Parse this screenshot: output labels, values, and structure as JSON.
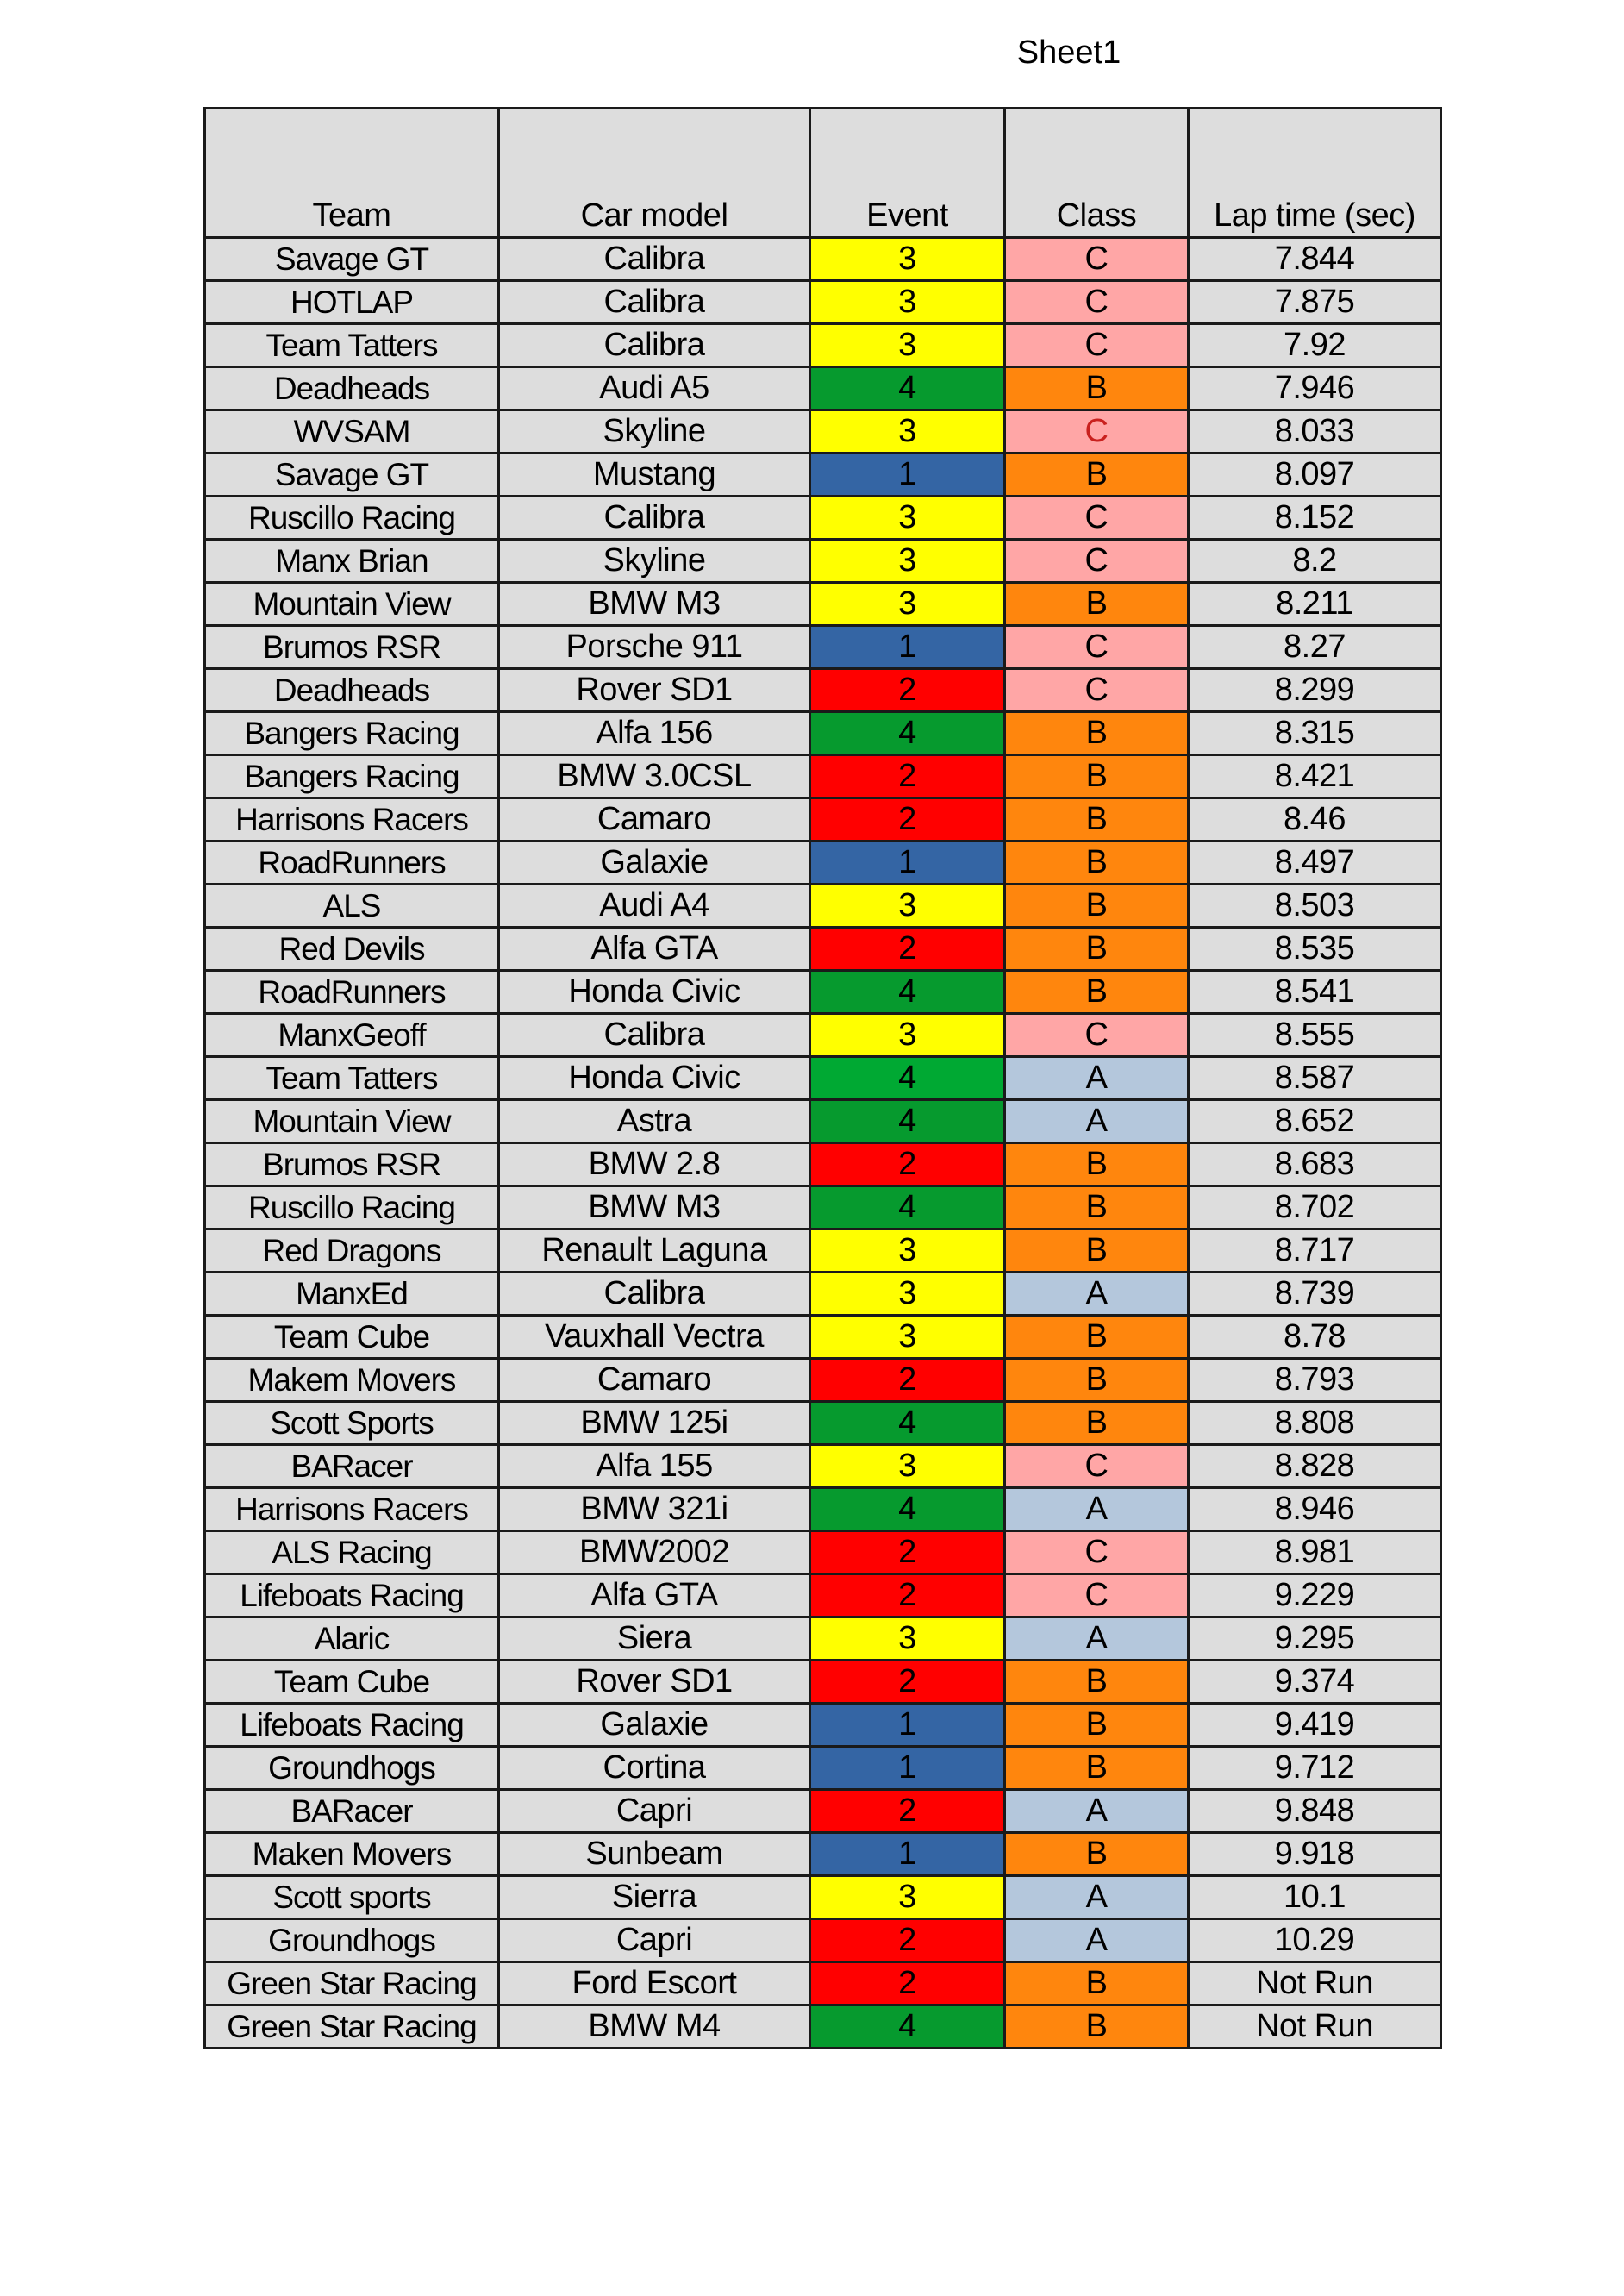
{
  "sheet_title": "Sheet1",
  "headers": [
    "Team",
    "Car model",
    "Event",
    "Class",
    "Lap time (sec)"
  ],
  "colors": {
    "cell_bg": "#dddddd",
    "event": {
      "1": "#3465a4",
      "2": "#ff0000",
      "3": "#ffff00",
      "4": "#069a2e"
    },
    "event_bright_green": "#00a933",
    "class": {
      "A": "#b4c7dc",
      "B": "#ff860d",
      "C": "#ffa6a6"
    },
    "class_red_text": "#c9211e"
  },
  "rows": [
    {
      "team": "Savage GT",
      "car": "Calibra",
      "event": "3",
      "class": "C",
      "lap": "7.844"
    },
    {
      "team": "HOTLAP",
      "car": "Calibra",
      "event": "3",
      "class": "C",
      "lap": "7.875"
    },
    {
      "team": "Team Tatters",
      "car": "Calibra",
      "event": "3",
      "class": "C",
      "lap": "7.92"
    },
    {
      "team": "Deadheads",
      "car": "Audi A5",
      "event": "4",
      "class": "B",
      "lap": "7.946"
    },
    {
      "team": "WVSAM",
      "car": "Skyline",
      "event": "3",
      "class": "C",
      "lap": "8.033",
      "class_text_red": true
    },
    {
      "team": "Savage GT",
      "car": "Mustang",
      "event": "1",
      "class": "B",
      "lap": "8.097"
    },
    {
      "team": "Ruscillo Racing",
      "car": "Calibra",
      "event": "3",
      "class": "C",
      "lap": "8.152"
    },
    {
      "team": "Manx Brian",
      "car": "Skyline",
      "event": "3",
      "class": "C",
      "lap": "8.2"
    },
    {
      "team": "Mountain View",
      "car": "BMW M3",
      "event": "3",
      "class": "B",
      "lap": "8.211"
    },
    {
      "team": "Brumos RSR",
      "car": "Porsche 911",
      "event": "1",
      "class": "C",
      "lap": "8.27"
    },
    {
      "team": "Deadheads",
      "car": "Rover SD1",
      "event": "2",
      "class": "C",
      "lap": "8.299"
    },
    {
      "team": "Bangers Racing",
      "car": "Alfa 156",
      "event": "4",
      "class": "B",
      "lap": "8.315"
    },
    {
      "team": "Bangers Racing",
      "car": "BMW 3.0CSL",
      "event": "2",
      "class": "B",
      "lap": "8.421"
    },
    {
      "team": "Harrisons Racers",
      "car": "Camaro",
      "event": "2",
      "class": "B",
      "lap": "8.46"
    },
    {
      "team": "RoadRunners",
      "car": "Galaxie",
      "event": "1",
      "class": "B",
      "lap": "8.497"
    },
    {
      "team": "ALS",
      "car": "Audi A4",
      "event": "3",
      "class": "B",
      "lap": "8.503"
    },
    {
      "team": "Red Devils",
      "car": "Alfa GTA",
      "event": "2",
      "class": "B",
      "lap": "8.535"
    },
    {
      "team": "RoadRunners",
      "car": "Honda Civic",
      "event": "4",
      "class": "B",
      "lap": "8.541"
    },
    {
      "team": "ManxGeoff",
      "car": "Calibra",
      "event": "3",
      "class": "C",
      "lap": "8.555"
    },
    {
      "team": "Team Tatters",
      "car": "Honda Civic",
      "event": "4",
      "class": "A",
      "lap": "8.587",
      "bright_green": true
    },
    {
      "team": "Mountain View",
      "car": "Astra",
      "event": "4",
      "class": "A",
      "lap": "8.652"
    },
    {
      "team": "Brumos RSR",
      "car": "BMW 2.8",
      "event": "2",
      "class": "B",
      "lap": "8.683"
    },
    {
      "team": "Ruscillo Racing",
      "car": "BMW M3",
      "event": "4",
      "class": "B",
      "lap": "8.702"
    },
    {
      "team": "Red Dragons",
      "car": "Renault Laguna",
      "event": "3",
      "class": "B",
      "lap": "8.717"
    },
    {
      "team": "ManxEd",
      "car": "Calibra",
      "event": "3",
      "class": "A",
      "lap": "8.739"
    },
    {
      "team": "Team Cube",
      "car": "Vauxhall Vectra",
      "event": "3",
      "class": "B",
      "lap": "8.78"
    },
    {
      "team": "Makem Movers",
      "car": "Camaro",
      "event": "2",
      "class": "B",
      "lap": "8.793"
    },
    {
      "team": "Scott Sports",
      "car": "BMW 125i",
      "event": "4",
      "class": "B",
      "lap": "8.808"
    },
    {
      "team": "BARacer",
      "car": "Alfa 155",
      "event": "3",
      "class": "C",
      "lap": "8.828"
    },
    {
      "team": "Harrisons Racers",
      "car": "BMW 321i",
      "event": "4",
      "class": "A",
      "lap": "8.946"
    },
    {
      "team": "ALS Racing",
      "car": "BMW2002",
      "event": "2",
      "class": "C",
      "lap": "8.981"
    },
    {
      "team": "Lifeboats Racing",
      "car": "Alfa GTA",
      "event": "2",
      "class": "C",
      "lap": "9.229"
    },
    {
      "team": "Alaric",
      "car": "Siera",
      "event": "3",
      "class": "A",
      "lap": "9.295"
    },
    {
      "team": "Team Cube",
      "car": "Rover SD1",
      "event": "2",
      "class": "B",
      "lap": "9.374"
    },
    {
      "team": "Lifeboats Racing",
      "car": "Galaxie",
      "event": "1",
      "class": "B",
      "lap": "9.419"
    },
    {
      "team": "Groundhogs",
      "car": "Cortina",
      "event": "1",
      "class": "B",
      "lap": "9.712"
    },
    {
      "team": "BARacer",
      "car": "Capri",
      "event": "2",
      "class": "A",
      "lap": "9.848"
    },
    {
      "team": "Maken Movers",
      "car": "Sunbeam",
      "event": "1",
      "class": "B",
      "lap": "9.918"
    },
    {
      "team": "Scott sports",
      "car": "Sierra",
      "event": "3",
      "class": "A",
      "lap": "10.1"
    },
    {
      "team": "Groundhogs",
      "car": "Capri",
      "event": "2",
      "class": "A",
      "lap": "10.29"
    },
    {
      "team": "Green Star Racing",
      "car": "Ford Escort",
      "event": "2",
      "class": "B",
      "lap": "Not Run"
    },
    {
      "team": "Green Star Racing",
      "car": "BMW M4",
      "event": "4",
      "class": "B",
      "lap": "Not Run"
    }
  ]
}
